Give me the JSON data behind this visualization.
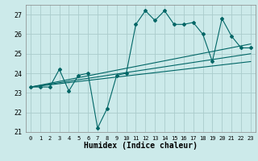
{
  "xlabel": "Humidex (Indice chaleur)",
  "ylabel": "",
  "xlim": [
    -0.5,
    23.5
  ],
  "ylim": [
    21,
    27.5
  ],
  "yticks": [
    21,
    22,
    23,
    24,
    25,
    26,
    27
  ],
  "xticks": [
    0,
    1,
    2,
    3,
    4,
    5,
    6,
    7,
    8,
    9,
    10,
    11,
    12,
    13,
    14,
    15,
    16,
    17,
    18,
    19,
    20,
    21,
    22,
    23
  ],
  "bg_color": "#cceaea",
  "grid_color": "#aacccc",
  "line_color": "#006666",
  "series": {
    "main_volatile": {
      "x": [
        0,
        1,
        2,
        3,
        4,
        5,
        6,
        7,
        8,
        9,
        10,
        11,
        12,
        13,
        14,
        15,
        16,
        17,
        18,
        19,
        20,
        21,
        22,
        23
      ],
      "y": [
        23.3,
        23.3,
        23.3,
        24.2,
        23.1,
        23.9,
        24.0,
        21.2,
        22.2,
        23.9,
        24.0,
        26.5,
        27.2,
        26.7,
        27.2,
        26.5,
        26.5,
        26.6,
        26.0,
        24.6,
        26.8,
        25.9,
        25.3,
        25.3
      ]
    },
    "trend_upper": {
      "x": [
        0,
        23
      ],
      "y": [
        23.3,
        25.5
      ]
    },
    "trend_lower": {
      "x": [
        0,
        23
      ],
      "y": [
        23.3,
        24.6
      ]
    },
    "trend_mid": {
      "x": [
        0,
        23
      ],
      "y": [
        23.3,
        25.0
      ]
    }
  }
}
